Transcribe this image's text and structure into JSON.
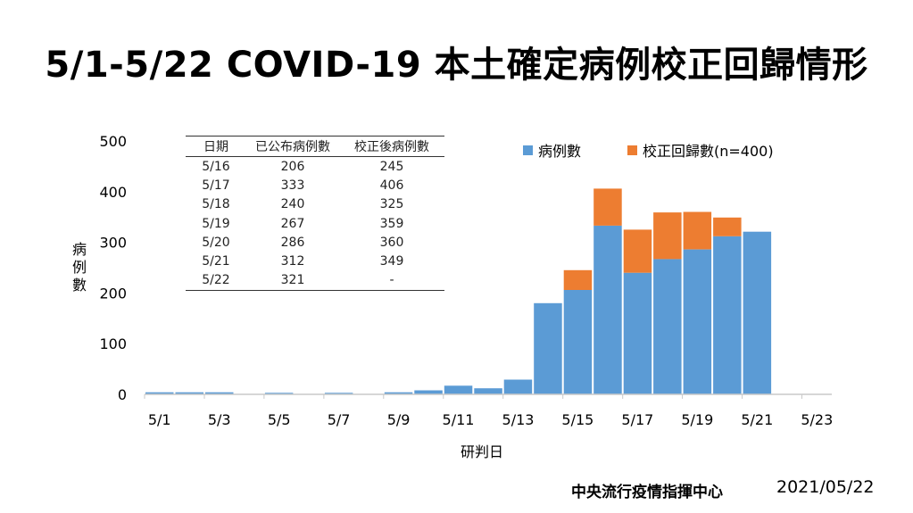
{
  "title": "5/1-5/22 COVID-19 本土確定病例校正回歸情形",
  "footer": {
    "org": "中央流行疫情指揮中心",
    "date": "2021/05/22"
  },
  "table": {
    "headers": [
      "日期",
      "已公布病例數",
      "校正後病例數"
    ],
    "rows": [
      [
        "5/16",
        "206",
        "245"
      ],
      [
        "5/17",
        "333",
        "406"
      ],
      [
        "5/18",
        "240",
        "325"
      ],
      [
        "5/19",
        "267",
        "359"
      ],
      [
        "5/20",
        "286",
        "360"
      ],
      [
        "5/21",
        "312",
        "349"
      ],
      [
        "5/22",
        "321",
        "-"
      ]
    ]
  },
  "chart_data": {
    "type": "bar",
    "stacked": true,
    "categories": [
      "5/1",
      "5/2",
      "5/3",
      "5/4",
      "5/5",
      "5/6",
      "5/7",
      "5/8",
      "5/9",
      "5/10",
      "5/11",
      "5/12",
      "5/13",
      "5/14",
      "5/15",
      "5/16",
      "5/17",
      "5/18",
      "5/19",
      "5/20",
      "5/21",
      "5/22"
    ],
    "x_tick_labels": [
      "5/1",
      "5/3",
      "5/5",
      "5/7",
      "5/9",
      "5/11",
      "5/13",
      "5/15",
      "5/17",
      "5/19",
      "5/21",
      "5/23"
    ],
    "series": [
      {
        "name": "病例數",
        "color": "#5b9bd5",
        "values": [
          4,
          4,
          4,
          0,
          3,
          0,
          3,
          0,
          4,
          8,
          17,
          12,
          29,
          180,
          206,
          333,
          240,
          267,
          286,
          312,
          321,
          0
        ]
      },
      {
        "name": "校正回歸數(n=400)",
        "color": "#ed7d31",
        "values": [
          0,
          0,
          0,
          0,
          0,
          0,
          0,
          0,
          0,
          0,
          0,
          0,
          0,
          0,
          39,
          73,
          85,
          92,
          74,
          37,
          0,
          0
        ]
      }
    ],
    "xlabel": "研判日",
    "ylabel": "病例數",
    "ylim": [
      0,
      500
    ],
    "yticks": [
      0,
      100,
      200,
      300,
      400,
      500
    ],
    "grid": false,
    "legend_position": "top-right"
  }
}
